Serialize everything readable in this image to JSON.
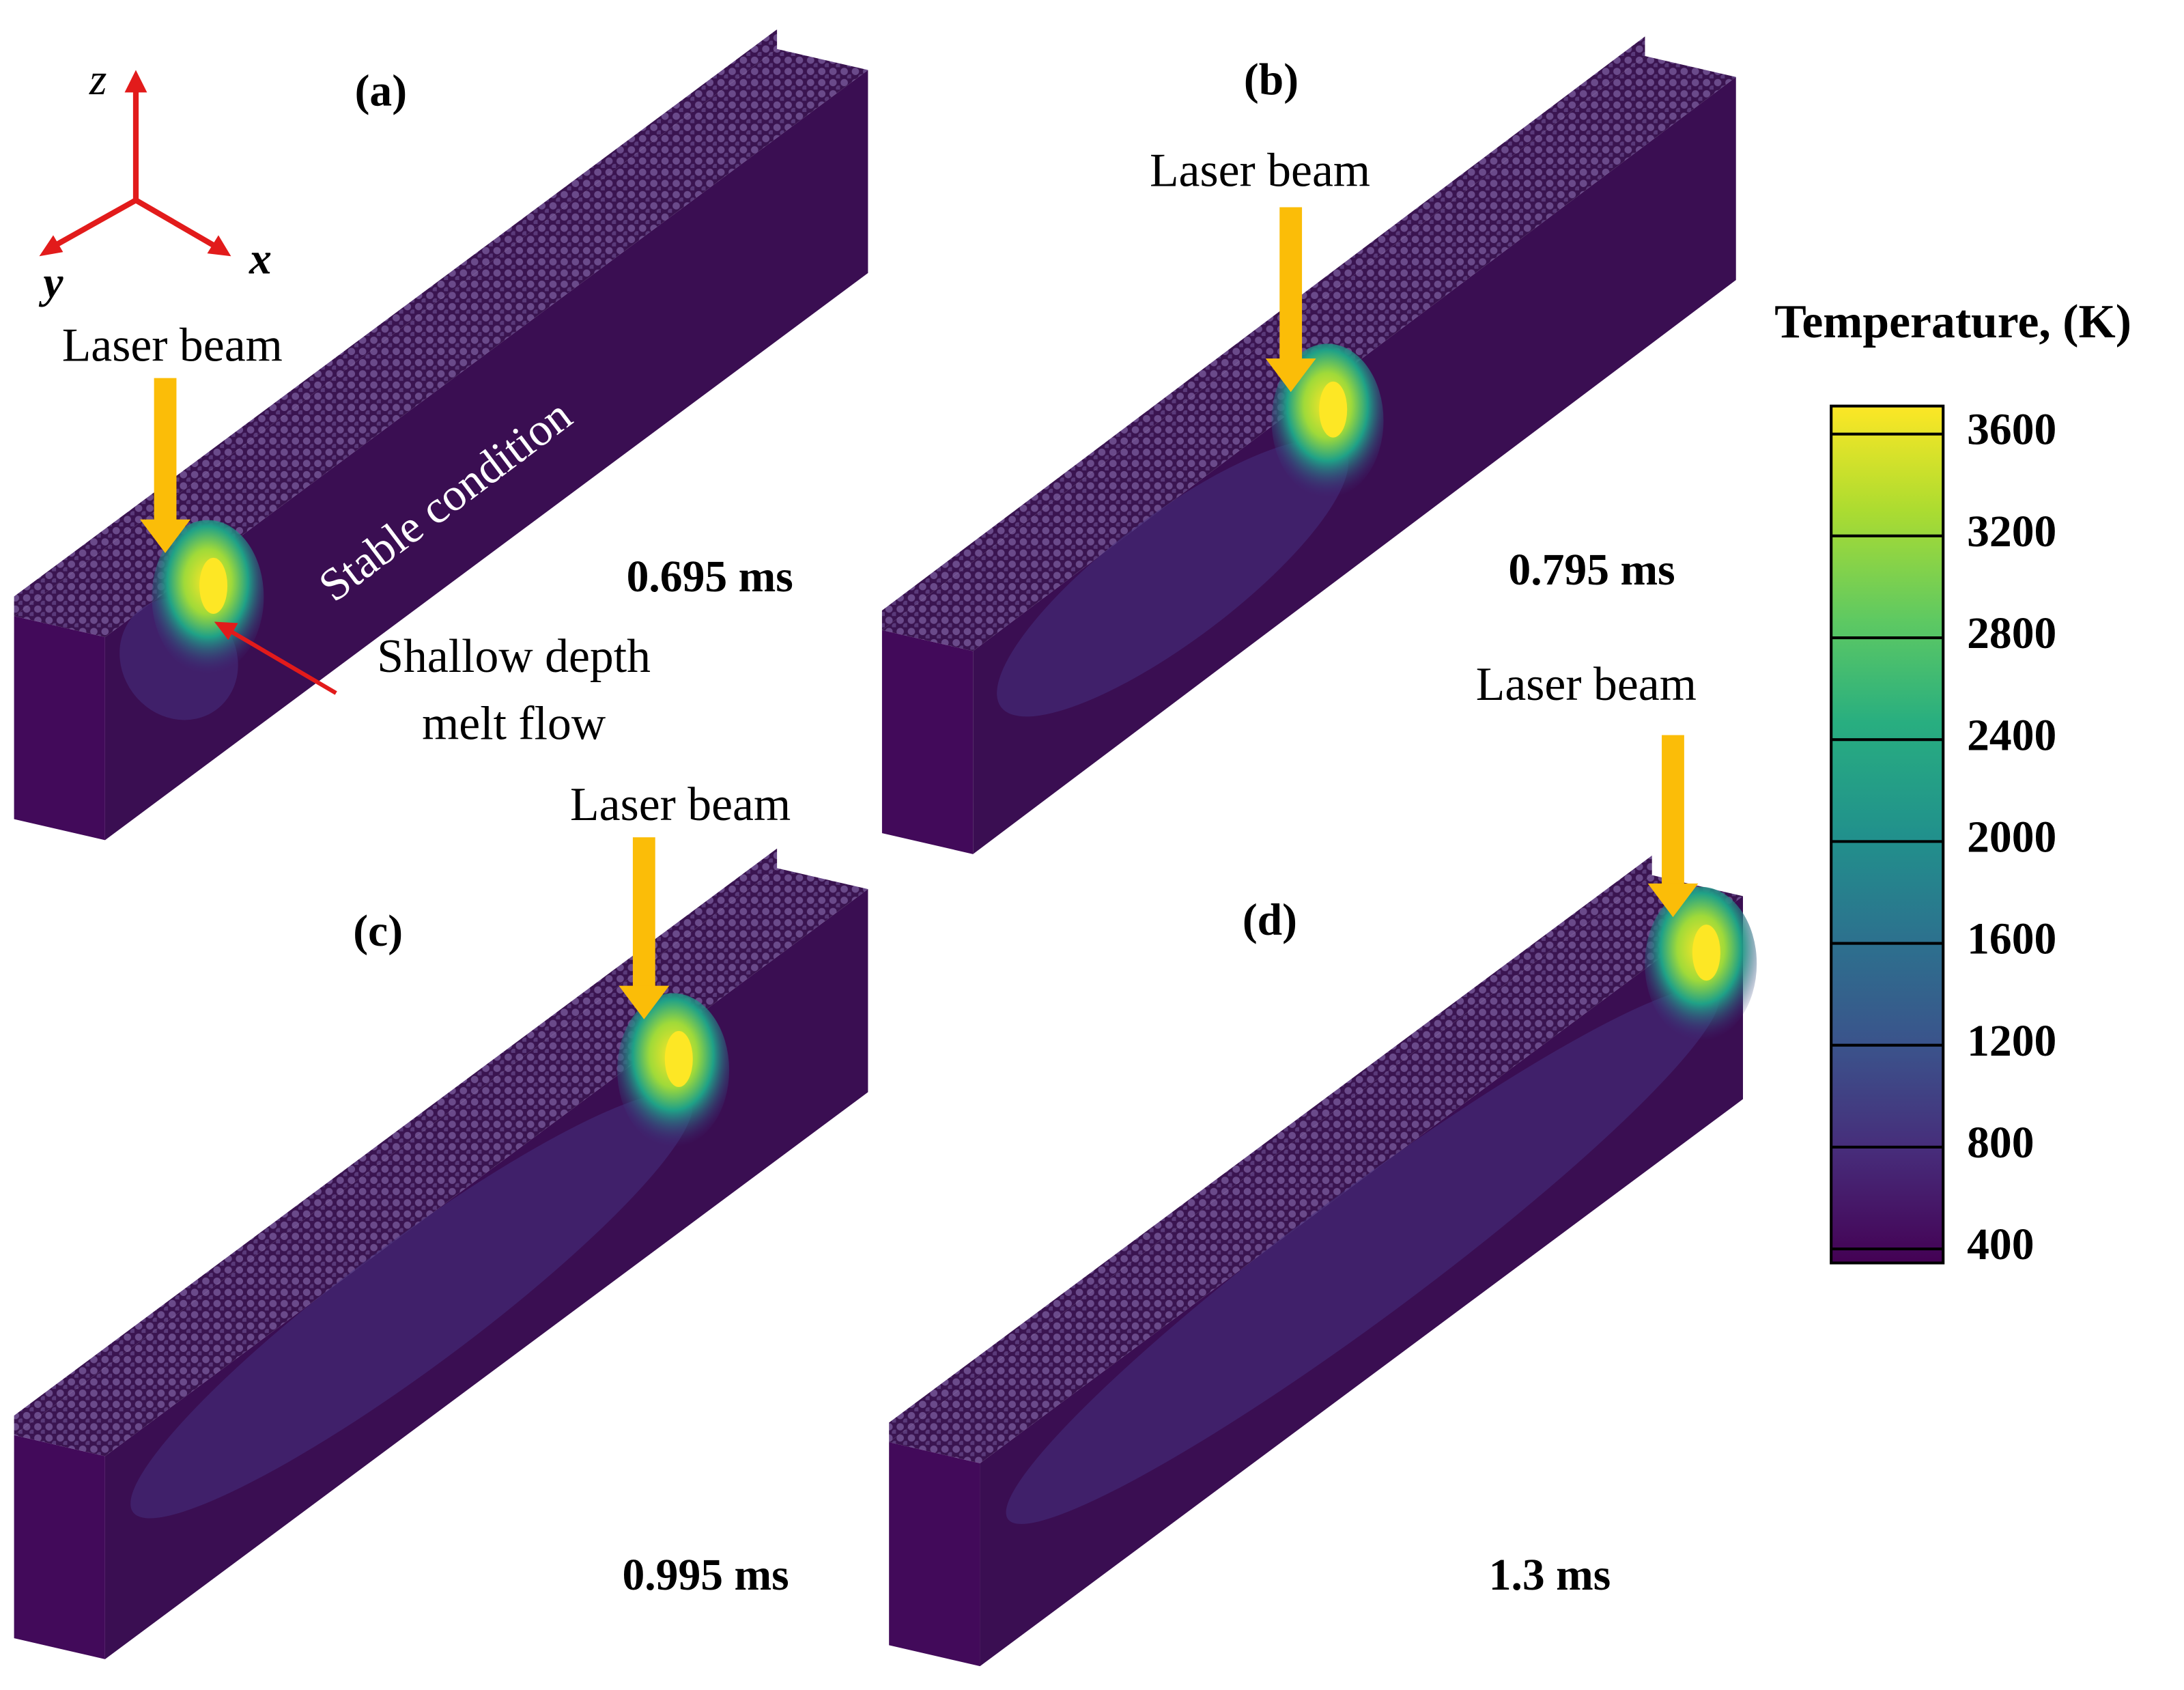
{
  "axes_triad": {
    "z": "z",
    "y": "y",
    "x": "x"
  },
  "panels": [
    {
      "label": "(a)",
      "time": "0.695 ms",
      "laser": "Laser beam"
    },
    {
      "label": "(b)",
      "time": "0.795 ms",
      "laser": "Laser beam"
    },
    {
      "label": "(c)",
      "time": "0.995 ms",
      "laser": "Laser beam"
    },
    {
      "label": "(d)",
      "time": "1.3 ms",
      "laser": "Laser beam"
    }
  ],
  "annotations": {
    "stable": "Stable condition",
    "shallow": [
      "Shallow depth",
      "melt flow"
    ]
  },
  "colorbar": {
    "title": "Temperature, (K)",
    "ticks": [
      3600,
      3200,
      2800,
      2400,
      2000,
      1600,
      1200,
      800,
      400
    ]
  }
}
